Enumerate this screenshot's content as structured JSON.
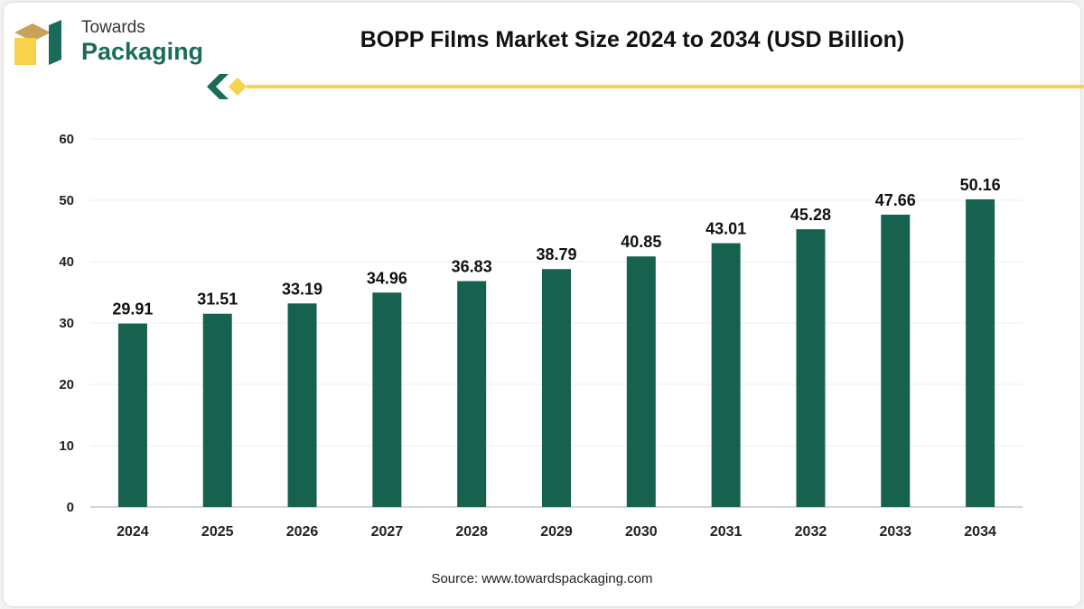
{
  "brand": {
    "line1": "Towards",
    "line2": "Packaging",
    "colors": {
      "green": "#1a6b5a",
      "gold": "#c9a25a",
      "yellow": "#f7d24a"
    }
  },
  "header": {
    "title": "BOPP Films Market Size 2024 to 2034 (USD Billion)"
  },
  "footer": {
    "source": "Source: www.towardspackaging.com"
  },
  "chart_data": {
    "type": "bar",
    "title": "BOPP Films Market Size 2024 to 2034 (USD Billion)",
    "xlabel": "",
    "ylabel": "",
    "categories": [
      "2024",
      "2025",
      "2026",
      "2027",
      "2028",
      "2029",
      "2030",
      "2031",
      "2032",
      "2033",
      "2034"
    ],
    "values": [
      29.91,
      31.51,
      33.19,
      34.96,
      36.83,
      38.79,
      40.85,
      43.01,
      45.28,
      47.66,
      50.16
    ],
    "ylim": [
      0,
      60
    ],
    "yticks": [
      0,
      10,
      20,
      30,
      40,
      50,
      60
    ],
    "grid": true,
    "bar_color": "#17614f",
    "data_labels": true
  }
}
